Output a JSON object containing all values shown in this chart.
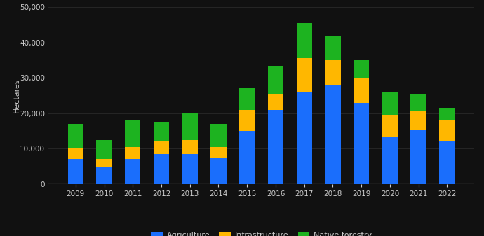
{
  "years": [
    2009,
    2010,
    2011,
    2012,
    2013,
    2014,
    2015,
    2016,
    2017,
    2018,
    2019,
    2020,
    2021,
    2022
  ],
  "agriculture": [
    7000,
    5000,
    7000,
    8500,
    8500,
    7500,
    15000,
    21000,
    26000,
    28000,
    23000,
    13500,
    15500,
    12000
  ],
  "infrastructure": [
    3000,
    2000,
    3500,
    3500,
    4000,
    3000,
    6000,
    4500,
    9500,
    7000,
    7000,
    6000,
    5000,
    6000
  ],
  "native_forestry": [
    7000,
    5500,
    7500,
    5500,
    7500,
    6500,
    6000,
    8000,
    10000,
    7000,
    5000,
    6500,
    5000,
    3500
  ],
  "colors": {
    "agriculture": "#1a6efc",
    "infrastructure": "#ffb700",
    "native_forestry": "#1db320"
  },
  "ylabel": "Hectares",
  "ylim": [
    0,
    50000
  ],
  "yticks": [
    0,
    10000,
    20000,
    30000,
    40000,
    50000
  ],
  "background_color": "#111111",
  "text_color": "#cccccc",
  "grid_color": "#2a2a2a",
  "legend_labels": [
    "Agriculture",
    "Infrastructure",
    "Native forestry"
  ]
}
